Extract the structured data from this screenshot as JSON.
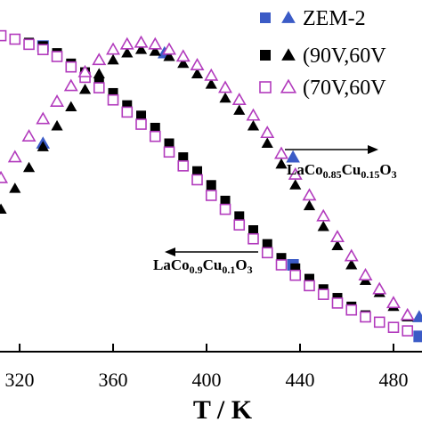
{
  "chart_data": {
    "type": "scatter",
    "xlabel": "T / K",
    "xlim": [
      311.6,
      492.2
    ],
    "ylim": [
      0,
      100
    ],
    "xticks": [
      320,
      360,
      400,
      440,
      480
    ],
    "series": [
      {
        "name": "ZEM-2",
        "color": "#3b5bc6",
        "filled": true,
        "squares": {
          "x": [
            330,
            437,
            491
          ],
          "values": [
            88,
            25,
            4.4
          ]
        },
        "triangles": {
          "x": [
            330,
            382,
            437,
            491
          ],
          "values": [
            60,
            86,
            56,
            10
          ]
        }
      },
      {
        "name": "(90V,60V",
        "color": "#000000",
        "filled": true,
        "squares": {
          "x": [
            312,
            318,
            324,
            330,
            336,
            342,
            348,
            354,
            360,
            366,
            372,
            378,
            384,
            390,
            396,
            402,
            408,
            414,
            420,
            426,
            432,
            438,
            444,
            450,
            456,
            462,
            468,
            474,
            480,
            486
          ],
          "values": [
            91,
            90,
            89,
            88,
            86,
            83,
            80.5,
            77.5,
            74.5,
            71,
            68,
            64.5,
            60,
            56,
            52,
            48,
            43.5,
            39,
            35,
            31,
            27,
            24,
            21,
            18,
            15.5,
            13,
            10.5,
            8.5,
            7,
            6
          ]
        },
        "triangles": {
          "x": [
            312,
            318,
            324,
            330,
            336,
            342,
            348,
            354,
            360,
            366,
            372,
            378,
            384,
            390,
            396,
            402,
            408,
            414,
            420,
            426,
            432,
            438,
            444,
            450,
            456,
            462,
            468,
            474,
            480,
            486
          ],
          "values": [
            41,
            47,
            53,
            59,
            65,
            70.5,
            75.5,
            80,
            84,
            86,
            87,
            86.5,
            85,
            83,
            80,
            77,
            73,
            69.5,
            65,
            60,
            54,
            48,
            42,
            36,
            30.5,
            25,
            20.5,
            17,
            13,
            10
          ]
        }
      },
      {
        "name": "(70V,60V",
        "color": "#b23bbd",
        "filled": false,
        "squares": {
          "x": [
            312,
            318,
            324,
            330,
            336,
            342,
            348,
            354,
            360,
            366,
            372,
            378,
            384,
            390,
            396,
            402,
            408,
            414,
            420,
            426,
            432,
            438,
            444,
            450,
            456,
            462,
            468,
            474,
            480,
            486
          ],
          "values": [
            91,
            90,
            88.5,
            87,
            85,
            82,
            79,
            76,
            72.5,
            69,
            65.5,
            62,
            57.5,
            53.5,
            49.5,
            45,
            41,
            36.5,
            32.5,
            28.5,
            25,
            22,
            19,
            16.5,
            14,
            12,
            10,
            8.5,
            7,
            6
          ]
        },
        "triangles": {
          "x": [
            312,
            318,
            324,
            330,
            336,
            342,
            348,
            354,
            360,
            366,
            372,
            378,
            384,
            390,
            396,
            402,
            408,
            414,
            420,
            426,
            432,
            438,
            444,
            450,
            456,
            462,
            468,
            474,
            480,
            486
          ],
          "values": [
            50,
            56,
            62,
            67,
            72,
            76.5,
            80.5,
            84,
            87,
            88.5,
            89,
            88.5,
            87,
            85,
            82.5,
            79.5,
            76,
            72.5,
            68,
            63,
            57,
            51,
            45,
            39,
            33,
            27.5,
            22,
            18,
            14,
            10.5
          ]
        }
      }
    ],
    "annotations": [
      {
        "text": [
          "LaCo",
          "0.85",
          "Cu",
          "0.15",
          "O",
          "3"
        ],
        "arrow": "right"
      },
      {
        "text": [
          "LaCo",
          "0.9",
          "Cu",
          "0.1",
          "O",
          "3"
        ],
        "arrow": "left"
      }
    ]
  }
}
